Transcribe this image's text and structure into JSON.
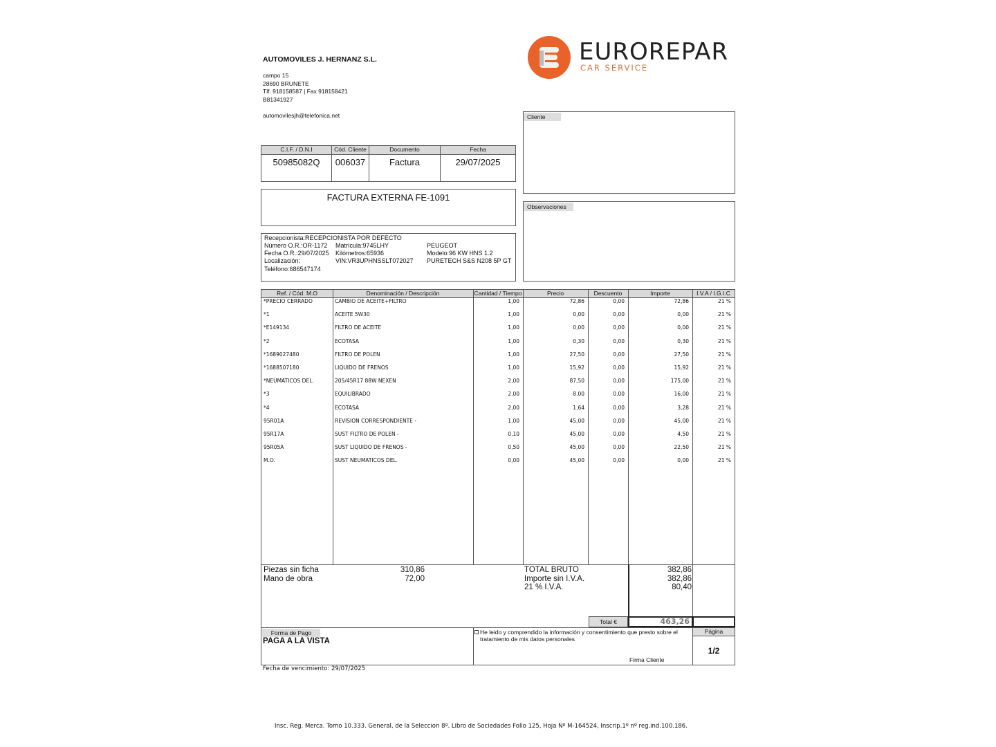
{
  "company": {
    "name": "AUTOMOVILES J. HERNANZ S.L.",
    "address_lines": [
      "campo 15",
      "28690 BRUNETE",
      "Tlf. 918158587 | Fax 918158421",
      "B81341927"
    ],
    "email": "automovilesjh@telefonica.net"
  },
  "logo": {
    "brand": "EUROREPAR",
    "tagline": "CAR SERVICE",
    "color": "#e8622a"
  },
  "doc_info": {
    "headers": [
      "C.I.F. / D.N.I",
      "Cód. Cliente",
      "Documento",
      "Fecha"
    ],
    "values": [
      "50985082Q",
      "006037",
      "Factura",
      "29/07/2025"
    ]
  },
  "invoice_title": "FACTURA EXTERNA FE-1091",
  "vehicle": {
    "receptionist": "Recepcionista:RECEPCIONISTA POR DEFECTO",
    "col1": [
      "Número O.R.:OR-1172",
      "Fecha O.R.:29/07/2025",
      "Localización:",
      "Teléfono:686547174"
    ],
    "col2": [
      "Matrícula:9745LHY",
      "Kilómetros:65936",
      "VIN:VR3UPHNSSLT072027"
    ],
    "col3": [
      "PEUGEOT",
      "Modelo:96 KW  HNS  1.2",
      "PURETECH S&S N208 5P GT"
    ]
  },
  "cliente_label": "Cliente",
  "observaciones_label": "Observaciones",
  "items": {
    "headers": [
      "Ref. / Cód. M.O",
      "Denominación / Descripción",
      "Cantidad / Tiempo",
      "Precio",
      "Descuento",
      "Importe",
      "I.V.A / I.G.I.C"
    ],
    "rows": [
      [
        "*PRECIO CERRADO",
        "CAMBIO DE ACEITE+FILTRO",
        "1,00",
        "72,86",
        "0,00",
        "72,86",
        "21 %"
      ],
      [
        "*1",
        "ACEITE 5W30",
        "1,00",
        "0,00",
        "0,00",
        "0,00",
        "21 %"
      ],
      [
        "*E149134",
        "FILTRO DE ACEITE",
        "1,00",
        "0,00",
        "0,00",
        "0,00",
        "21 %"
      ],
      [
        "*2",
        "ECOTASA",
        "1,00",
        "0,30",
        "0,00",
        "0,30",
        "21 %"
      ],
      [
        "*1689027480",
        "FILTRO DE POLEN",
        "1,00",
        "27,50",
        "0,00",
        "27,50",
        "21 %"
      ],
      [
        "*1688507180",
        "LIQUIDO DE FRENOS",
        "1,00",
        "15,92",
        "0,00",
        "15,92",
        "21 %"
      ],
      [
        "*NEUMATICOS DEL.",
        "205/45R17 88W NEXEN",
        "2,00",
        "87,50",
        "0,00",
        "175,00",
        "21 %"
      ],
      [
        "*3",
        "EQUILIBRADO",
        "2,00",
        "8,00",
        "0,00",
        "16,00",
        "21 %"
      ],
      [
        "*4",
        "ECOTASA",
        "2,00",
        "1,64",
        "0,00",
        "3,28",
        "21 %"
      ],
      [
        "95R01A",
        "REVISION CORRESPONDIENTE -",
        "1,00",
        "45,00",
        "0,00",
        "45,00",
        "21 %"
      ],
      [
        "95R17A",
        "SUST FILTRO DE POLEN  -",
        "0,10",
        "45,00",
        "0,00",
        "4,50",
        "21 %"
      ],
      [
        "95R05A",
        "SUST LIQUIDO DE FRENOS -",
        "0,50",
        "45,00",
        "0,00",
        "22,50",
        "21 %"
      ],
      [
        "M.O.",
        "SUST NEUMATICOS DEL.",
        "0,00",
        "45,00",
        "0,00",
        "0,00",
        "21 %"
      ]
    ]
  },
  "summary": {
    "piezas_label": "Piezas sin ficha",
    "piezas_value": "310,86",
    "mano_label": "Mano de obra",
    "mano_value": "72,00",
    "total_bruto_label": "TOTAL BRUTO",
    "total_bruto_value": "382,86",
    "sin_iva_label": "Importe sin I.V.A.",
    "sin_iva_value": "382,86",
    "iva_label": "21 % I.V.A.",
    "iva_value": "80,40",
    "total_label": "Total €",
    "total_value": "463,26"
  },
  "payment": {
    "label": "Forma de Pago",
    "value": "PAGA A LA VISTA"
  },
  "consent": {
    "text": "He leido y comprendido la información y consentimiento que presto sobre el tratamiento de mis datos personales",
    "signature_label": "Firma Cliente"
  },
  "page": {
    "label": "Página",
    "value": "1/2"
  },
  "due_date": "Fecha de vencimiento: 29/07/2025",
  "footer": "Insc. Reg. Merca. Tomo 10.333. General, de la Seleccion 8º. Libro de Sociedades Folio 125, Hoja Nº M-164524, Inscrip.1º nº reg.ind.100.186."
}
